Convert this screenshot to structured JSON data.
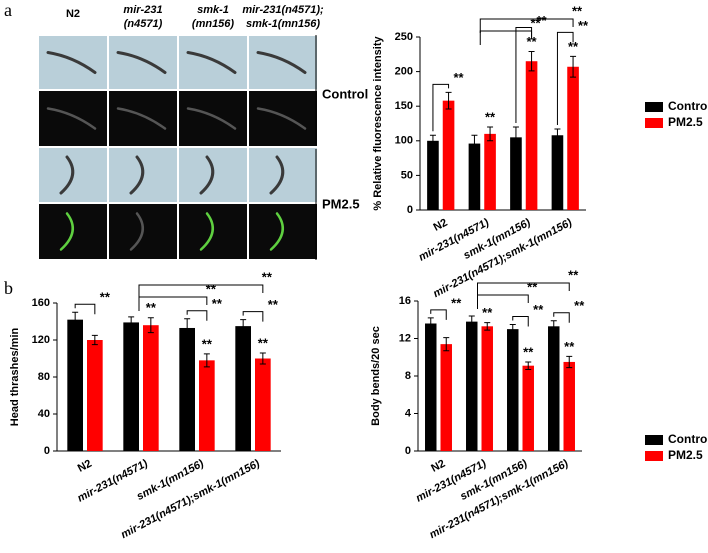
{
  "panel_labels": [
    "a",
    "b"
  ],
  "image_panel": {
    "columns": [
      [
        "N2"
      ],
      [
        "mir-231",
        "(n4571)"
      ],
      [
        "smk-1",
        "(mn156)"
      ],
      [
        "mir-231(n4571);",
        "smk-1(mn156)"
      ]
    ],
    "rows": [
      "Control",
      "PM2.5"
    ]
  },
  "chart_data": [
    {
      "type": "bar",
      "ylabel": "% Relative fluorescence intensity",
      "categories": [
        "N2",
        "mir-231(n4571)",
        "smk-1(mn156)",
        "mir-231(n4571);smk-1(mn156)"
      ],
      "series": [
        {
          "name": "Control",
          "color": "#000000",
          "values": [
            100,
            96,
            105,
            108
          ],
          "errors": [
            8,
            12,
            15,
            9
          ]
        },
        {
          "name": "PM2.5",
          "color": "#ff0000",
          "values": [
            158,
            110,
            215,
            207
          ],
          "errors": [
            12,
            10,
            14,
            15
          ]
        }
      ],
      "star_labels": [
        null,
        "**",
        "**",
        "**"
      ],
      "pair_labels": [
        "**",
        null,
        "**",
        "**"
      ],
      "cross_labels": [
        "**",
        "**"
      ],
      "ylim": [
        0,
        250
      ],
      "yticks": [
        0,
        50,
        100,
        150,
        200,
        250
      ],
      "legend": "right"
    },
    {
      "type": "bar",
      "ylabel": "Head thrashes/min",
      "categories": [
        "N2",
        "mir-231(n4571)",
        "smk-1(mn156)",
        "mir-231(n4571);smk-1(mn156)"
      ],
      "series": [
        {
          "color": "#000000",
          "values": [
            142,
            139,
            133,
            135
          ],
          "errors": [
            8,
            6,
            10,
            7
          ]
        },
        {
          "color": "#ff0000",
          "values": [
            120,
            136,
            98,
            100
          ],
          "errors": [
            5,
            8,
            7,
            6
          ]
        }
      ],
      "star_labels": [
        null,
        "**",
        "**",
        "**"
      ],
      "pair_labels": [
        "**",
        null,
        "**",
        "**"
      ],
      "cross_labels": [
        "**",
        "**"
      ],
      "ylim": [
        0,
        160
      ],
      "yticks": [
        0,
        40,
        80,
        120,
        160
      ]
    },
    {
      "type": "bar",
      "ylabel": "Body bends/20 sec",
      "categories": [
        "N2",
        "mir-231(n4571)",
        "smk-1(mn156)",
        "mir-231(n4571);smk-1(mn156)"
      ],
      "series": [
        {
          "name": "Control",
          "color": "#000000",
          "values": [
            13.6,
            13.8,
            13.0,
            13.3
          ],
          "errors": [
            0.6,
            0.6,
            0.5,
            0.6
          ]
        },
        {
          "name": "PM2.5",
          "color": "#ff0000",
          "values": [
            11.4,
            13.3,
            9.1,
            9.5
          ],
          "errors": [
            0.7,
            0.4,
            0.4,
            0.6
          ]
        }
      ],
      "star_labels": [
        null,
        "**",
        "**",
        "**"
      ],
      "pair_labels": [
        "**",
        null,
        "**",
        "**"
      ],
      "cross_labels": [
        "**",
        "**"
      ],
      "ylim": [
        0,
        16
      ],
      "yticks": [
        0,
        4,
        8,
        12,
        16
      ],
      "legend": "right"
    }
  ]
}
